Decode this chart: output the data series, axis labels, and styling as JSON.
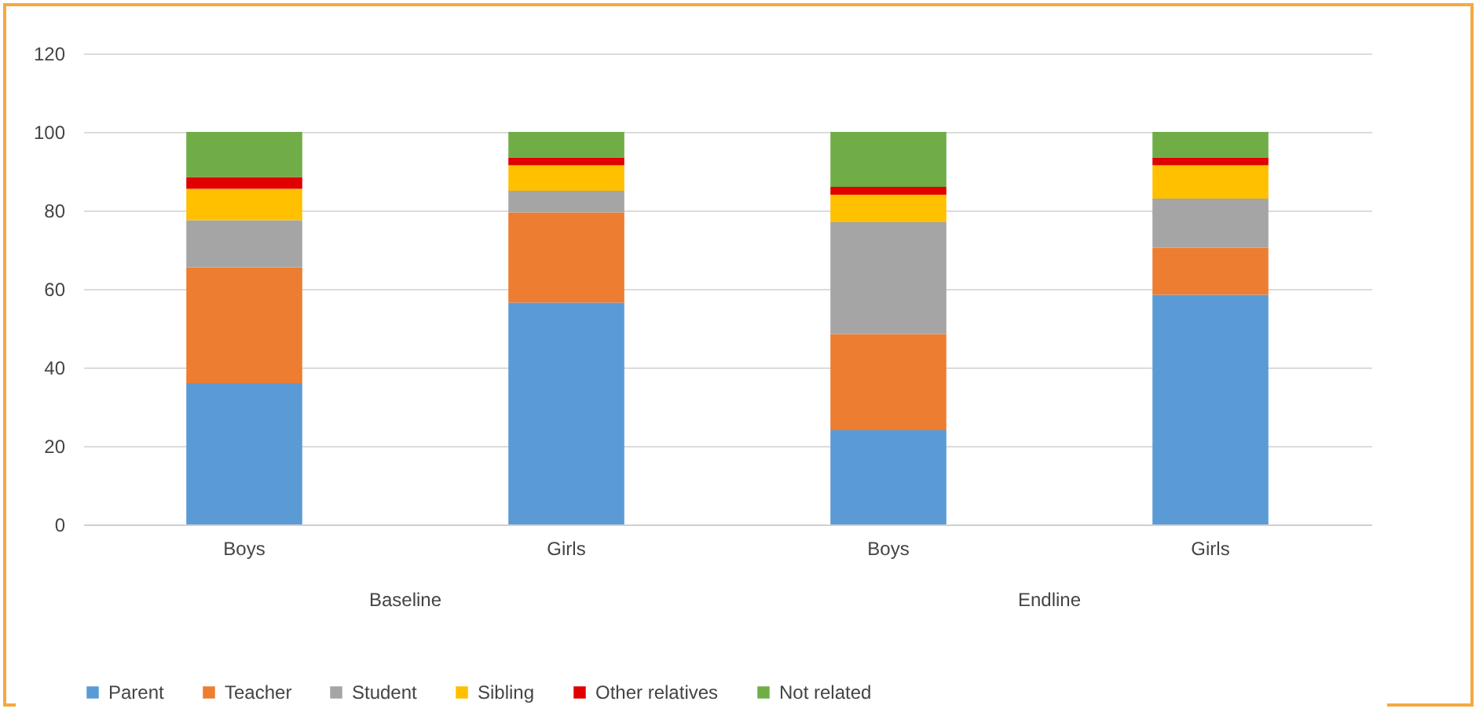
{
  "chart_data": {
    "type": "bar",
    "stacked": true,
    "categories": [
      "Boys",
      "Girls",
      "Boys",
      "Girls"
    ],
    "series": [
      {
        "name": "Parent",
        "color": "#5b9bd5",
        "values": [
          36,
          56.5,
          24,
          58.5
        ]
      },
      {
        "name": "Teacher",
        "color": "#ed7d31",
        "values": [
          29.5,
          23,
          24.5,
          12
        ]
      },
      {
        "name": "Student",
        "color": "#a5a5a5",
        "values": [
          12,
          5.5,
          28.5,
          12.5
        ]
      },
      {
        "name": "Sibling",
        "color": "#ffc000",
        "values": [
          8,
          6.5,
          7,
          8.5
        ]
      },
      {
        "name": "Other relatives",
        "color": "#e00000",
        "values": [
          3,
          2,
          2,
          2
        ]
      },
      {
        "name": "Not related",
        "color": "#70ad47",
        "values": [
          11.5,
          6.5,
          14,
          6.5
        ]
      }
    ],
    "annotations": [
      "Baseline",
      "Endline"
    ],
    "ylim": [
      0,
      120
    ],
    "yticks": [
      0,
      20,
      40,
      60,
      80,
      100,
      120
    ],
    "grid": "y",
    "legend": "bottom"
  }
}
